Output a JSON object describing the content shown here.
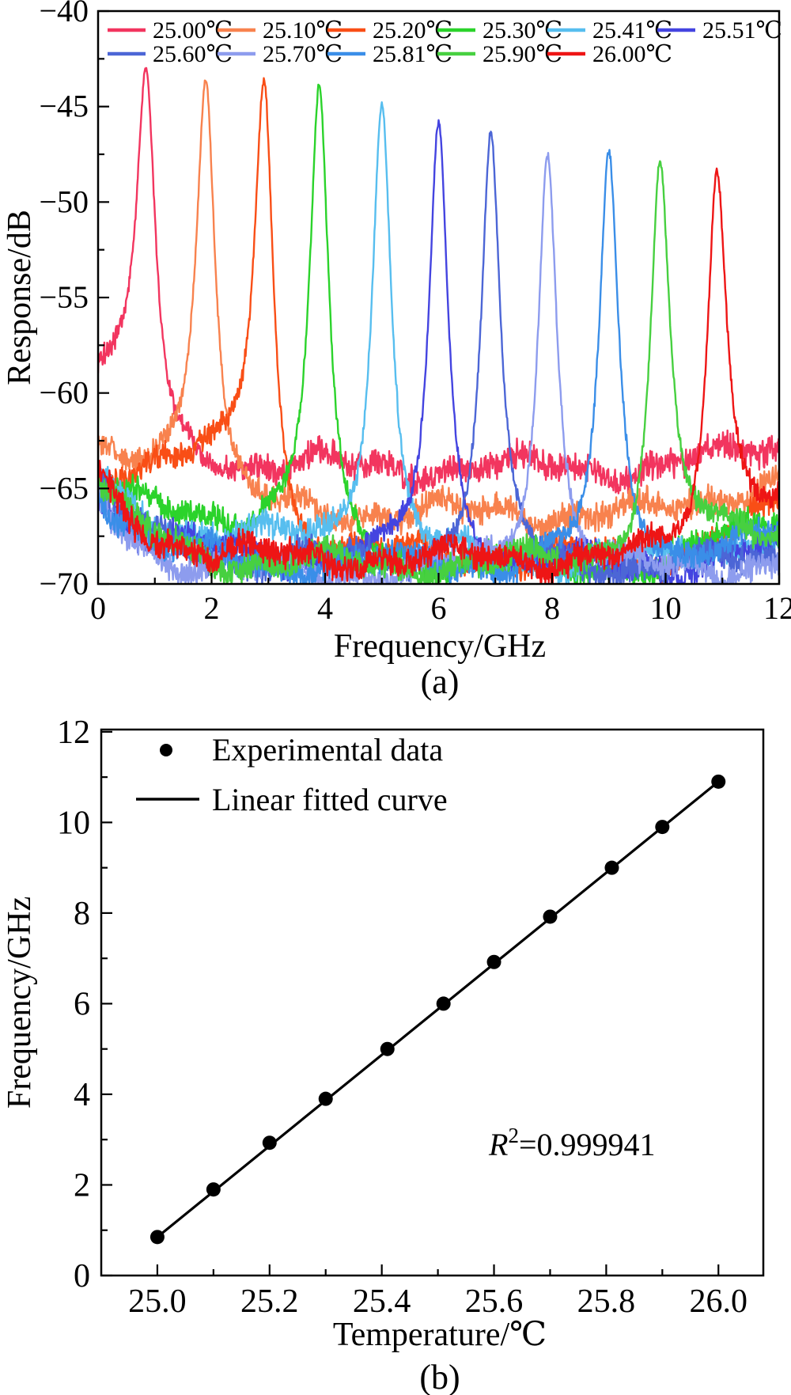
{
  "figure": {
    "captions": {
      "a": "(a)",
      "b": "(b)"
    }
  },
  "chart_data": [
    {
      "type": "line",
      "id": "temperature-spectra",
      "xlabel": "Frequency/GHz",
      "ylabel": "Response/dB",
      "xlim": [
        0,
        12
      ],
      "ylim": [
        -70,
        -40
      ],
      "grid": false,
      "legend_position": "inside-top, two rows",
      "x_major_ticks": {
        "values": [
          0,
          2,
          4,
          6,
          8,
          10,
          12
        ],
        "labels": [
          "0",
          "2",
          "4",
          "6",
          "8",
          "10",
          "12"
        ]
      },
      "x_minor_ticks": [
        1,
        3,
        5,
        7,
        9,
        11
      ],
      "y_major_ticks": {
        "values": [
          -40,
          -45,
          -50,
          -55,
          -60,
          -65,
          -70
        ],
        "labels": [
          "−40",
          "−45",
          "−50",
          "−55",
          "−60",
          "−65",
          "−70"
        ]
      },
      "y_minor_ticks": [
        -42.5,
        -47.5,
        -52.5,
        -57.5,
        -62.5,
        -67.5
      ],
      "series": [
        {
          "name": "25.00℃",
          "color": "#F2355F",
          "peak_ghz": 0.85,
          "peak_db": -43.6,
          "start_db": -59.3,
          "floor_before_db": -60.6,
          "floor_after_db": -63.9,
          "right_rise_db": 1.2,
          "peak_width_ghz": 0.2
        },
        {
          "name": "25.10℃",
          "color": "#F8824E",
          "peak_ghz": 1.9,
          "peak_db": -43.5,
          "start_db": -63.6,
          "floor_before_db": -63.7,
          "floor_after_db": -66.3,
          "right_rise_db": 2.0,
          "peak_width_ghz": 0.2
        },
        {
          "name": "25.20℃",
          "color": "#F94E16",
          "peak_ghz": 2.93,
          "peak_db": -43.5,
          "start_db": -64.3,
          "floor_before_db": -63.6,
          "floor_after_db": -68.6,
          "right_rise_db": 2.4,
          "peak_width_ghz": 0.2
        },
        {
          "name": "25.30℃",
          "color": "#2BD32B",
          "peak_ghz": 3.9,
          "peak_db": -44.0,
          "start_db": -64.8,
          "floor_before_db": -66.9,
          "floor_after_db": -69.0,
          "right_rise_db": 2.6,
          "peak_width_ghz": 0.2
        },
        {
          "name": "25.41℃",
          "color": "#57BEEF",
          "peak_ghz": 5.0,
          "peak_db": -44.8,
          "start_db": -64.2,
          "floor_before_db": -67.9,
          "floor_after_db": -68.8,
          "right_rise_db": 1.5,
          "peak_width_ghz": 0.2
        },
        {
          "name": "25.51℃",
          "color": "#4444E0",
          "peak_ghz": 6.0,
          "peak_db": -45.9,
          "start_db": -65.2,
          "floor_before_db": -68.7,
          "floor_after_db": -69.1,
          "right_rise_db": 1.0,
          "peak_width_ghz": 0.2
        },
        {
          "name": "25.60℃",
          "color": "#4C66D6",
          "peak_ghz": 6.92,
          "peak_db": -46.5,
          "start_db": -64.9,
          "floor_before_db": -68.9,
          "floor_after_db": -69.2,
          "right_rise_db": 0.6,
          "peak_width_ghz": 0.2
        },
        {
          "name": "25.70℃",
          "color": "#8D9CEE",
          "peak_ghz": 7.92,
          "peak_db": -47.5,
          "start_db": -65.8,
          "floor_before_db": -69.4,
          "floor_after_db": -69.4,
          "right_rise_db": 0.6,
          "peak_width_ghz": 0.2
        },
        {
          "name": "25.81℃",
          "color": "#3A8EE8",
          "peak_ghz": 9.0,
          "peak_db": -47.5,
          "start_db": -64.9,
          "floor_before_db": -69.0,
          "floor_after_db": -68.8,
          "right_rise_db": 1.2,
          "peak_width_ghz": 0.2
        },
        {
          "name": "25.90℃",
          "color": "#47D040",
          "peak_ghz": 9.9,
          "peak_db": -47.9,
          "start_db": -64.6,
          "floor_before_db": -69.0,
          "floor_after_db": -67.5,
          "right_rise_db": 0,
          "peak_width_ghz": 0.2
        },
        {
          "name": "26.00℃",
          "color": "#EE1515",
          "peak_ghz": 10.9,
          "peak_db": -48.4,
          "start_db": -64.6,
          "floor_before_db": -68.7,
          "floor_after_db": -66.0,
          "right_rise_db": 0,
          "peak_width_ghz": 0.2
        }
      ]
    },
    {
      "type": "scatter",
      "id": "linear-fit",
      "xlabel": "Temperature/℃",
      "ylabel": "Frequency/GHz",
      "xlim": [
        24.9,
        26.08
      ],
      "ylim": [
        0,
        12.05
      ],
      "grid": false,
      "legend_position": "inside top-left",
      "x_major_ticks": {
        "values": [
          25.0,
          25.2,
          25.4,
          25.6,
          25.8,
          26.0
        ],
        "labels": [
          "25.0",
          "25.2",
          "25.4",
          "25.6",
          "25.8",
          "26.0"
        ]
      },
      "x_minor_ticks": [
        25.1,
        25.3,
        25.5,
        25.7,
        25.9
      ],
      "y_major_ticks": {
        "values": [
          0,
          2,
          4,
          6,
          8,
          10,
          12
        ],
        "labels": [
          "0",
          "2",
          "4",
          "6",
          "8",
          "10",
          "12"
        ]
      },
      "y_minor_ticks": [
        1,
        3,
        5,
        7,
        9,
        11
      ],
      "legend": [
        {
          "label": "Experimental data",
          "marker": "dot"
        },
        {
          "label": "Linear fitted curve",
          "marker": "line"
        }
      ],
      "points": {
        "temperature_c": [
          25.0,
          25.1,
          25.2,
          25.3,
          25.41,
          25.51,
          25.6,
          25.7,
          25.81,
          25.9,
          26.0
        ],
        "frequency_ghz": [
          0.85,
          1.9,
          2.93,
          3.9,
          5.0,
          6.0,
          6.92,
          7.92,
          9.0,
          9.9,
          10.9
        ]
      },
      "fit": {
        "from": {
          "temperature_c": 25.0,
          "frequency_ghz": 0.85
        },
        "to": {
          "temperature_c": 26.0,
          "frequency_ghz": 10.9
        }
      },
      "annotation": {
        "r": "R",
        "sup": "2",
        "rest": "=0.999941"
      }
    }
  ]
}
